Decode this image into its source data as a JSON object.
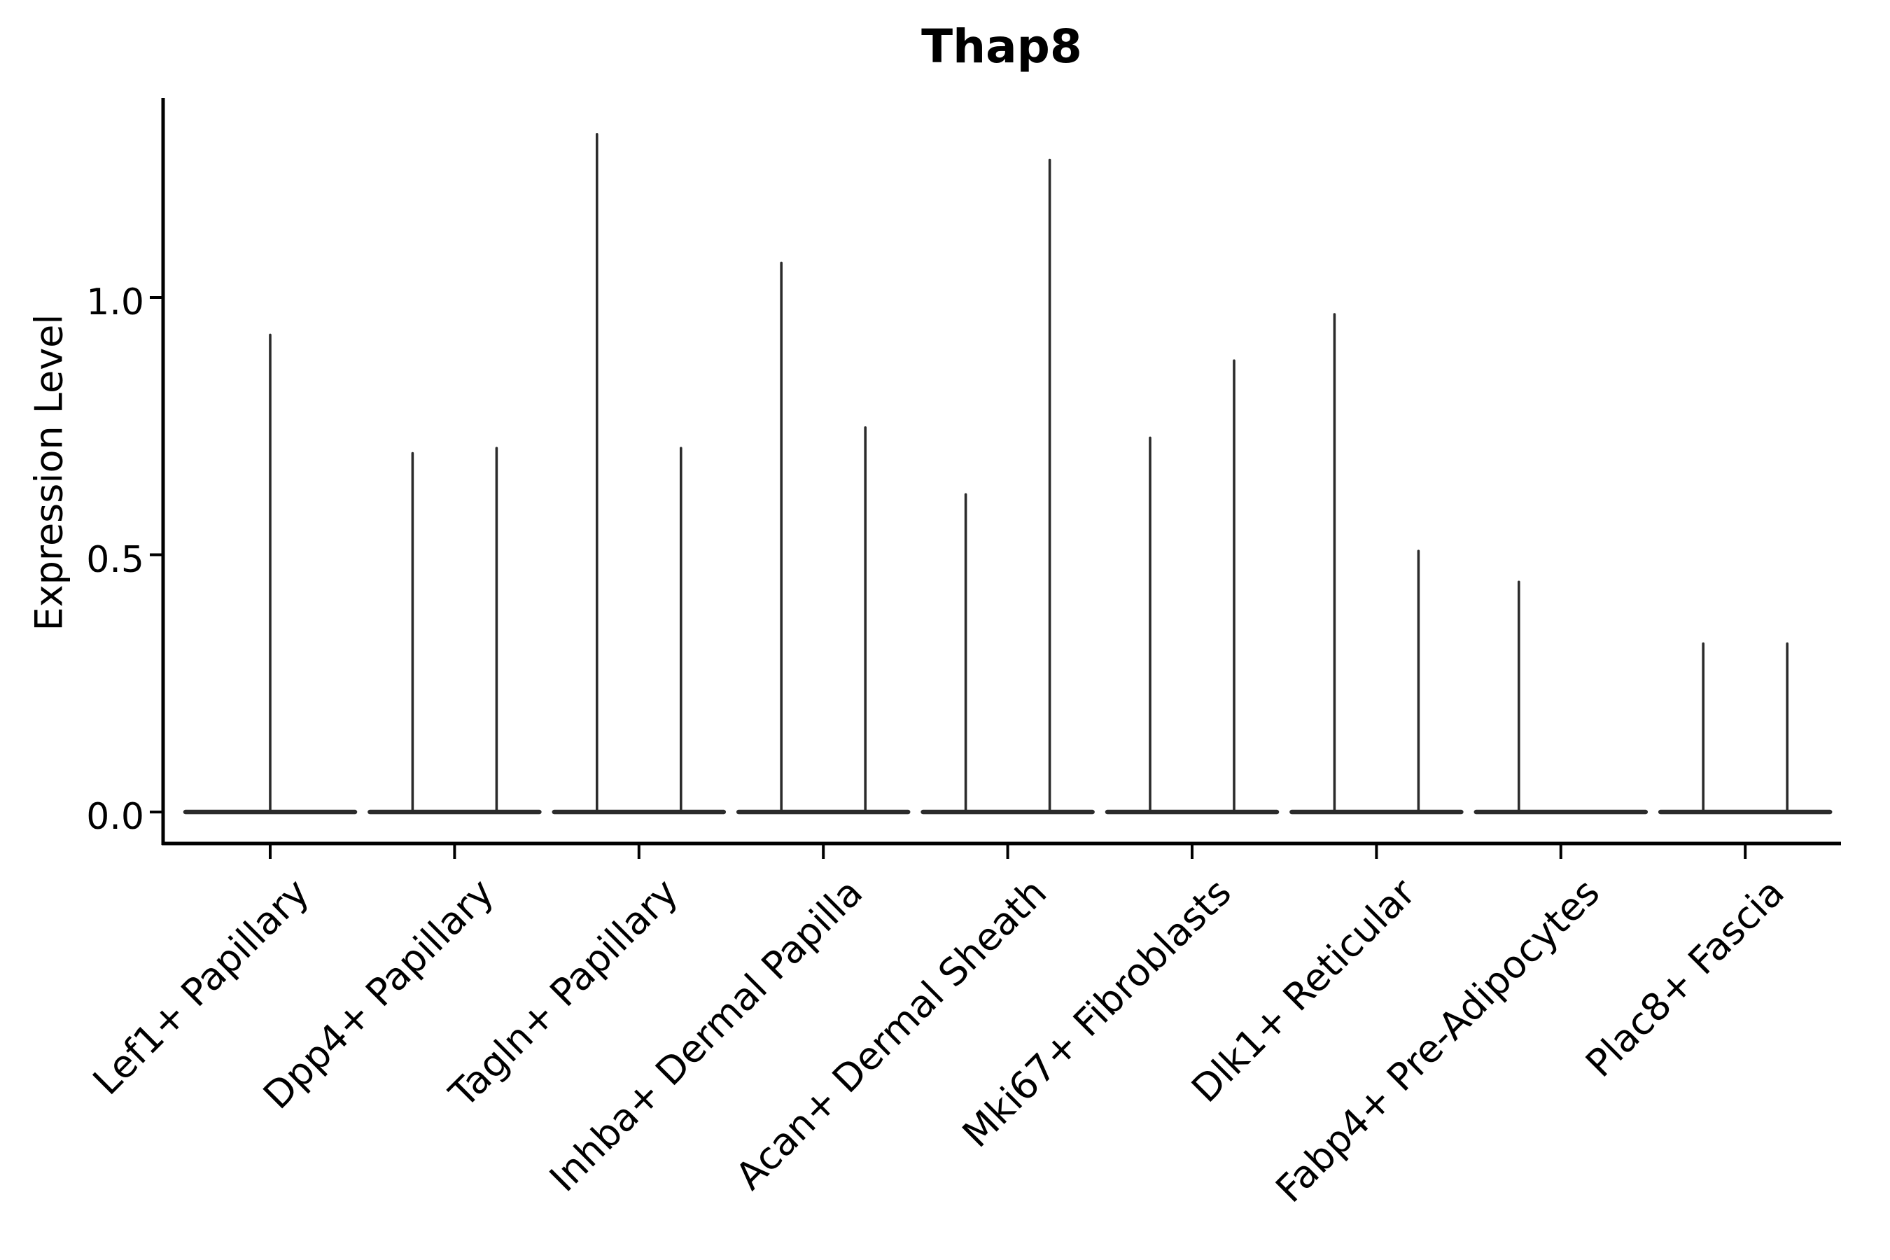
{
  "chart_data": {
    "type": "violin",
    "title": "Thap8",
    "ylabel": "Expression Level",
    "xlabel": "",
    "yticks": [
      "0.0",
      "0.5",
      "1.0"
    ],
    "ytick_values": [
      0.0,
      0.5,
      1.0
    ],
    "ylim": [
      -0.06,
      1.39
    ],
    "grid": false,
    "legend": "none",
    "x_label_rotation_deg": 45,
    "description": "Zero-inflated violin plot: each violin is a wide flat base at expression 0 with a thin spike rising to its maximum expression value. Some categories contain two side-by-side violins, some only one.",
    "categories": [
      "Lef1+ Papillary",
      "Dpp4+ Papillary",
      "Tagln+ Papillary",
      "Inhba+ Dermal Papilla",
      "Acan+ Dermal Sheath",
      "Mki67+ Fibroblasts",
      "Dlk1+ Reticular",
      "Fabp4+ Pre-Adipocytes",
      "Plac8+ Fascia"
    ],
    "series": [
      {
        "category": "Lef1+ Papillary",
        "violins": [
          {
            "pos": "center",
            "max": 0.93
          }
        ]
      },
      {
        "category": "Dpp4+ Papillary",
        "violins": [
          {
            "pos": "left",
            "max": 0.7
          },
          {
            "pos": "right",
            "max": 0.71
          }
        ]
      },
      {
        "category": "Tagln+ Papillary",
        "violins": [
          {
            "pos": "left",
            "max": 1.32
          },
          {
            "pos": "right",
            "max": 0.71
          }
        ]
      },
      {
        "category": "Inhba+ Dermal Papilla",
        "violins": [
          {
            "pos": "left",
            "max": 1.07
          },
          {
            "pos": "right",
            "max": 0.75
          }
        ]
      },
      {
        "category": "Acan+ Dermal Sheath",
        "violins": [
          {
            "pos": "left",
            "max": 0.62
          },
          {
            "pos": "right",
            "max": 1.27
          }
        ]
      },
      {
        "category": "Mki67+ Fibroblasts",
        "violins": [
          {
            "pos": "left",
            "max": 0.73
          },
          {
            "pos": "right",
            "max": 0.88
          }
        ]
      },
      {
        "category": "Dlk1+ Reticular",
        "violins": [
          {
            "pos": "left",
            "max": 0.97
          },
          {
            "pos": "right",
            "max": 0.51
          }
        ]
      },
      {
        "category": "Fabp4+ Pre-Adipocytes",
        "violins": [
          {
            "pos": "left",
            "max": 0.45
          }
        ]
      },
      {
        "category": "Plac8+ Fascia",
        "violins": [
          {
            "pos": "left",
            "max": 0.33
          },
          {
            "pos": "right",
            "max": 0.33
          }
        ]
      }
    ],
    "colors": {
      "violin_stroke": "#2b2b2b",
      "axis": "#000000",
      "text": "#000000",
      "background": "#ffffff"
    }
  }
}
